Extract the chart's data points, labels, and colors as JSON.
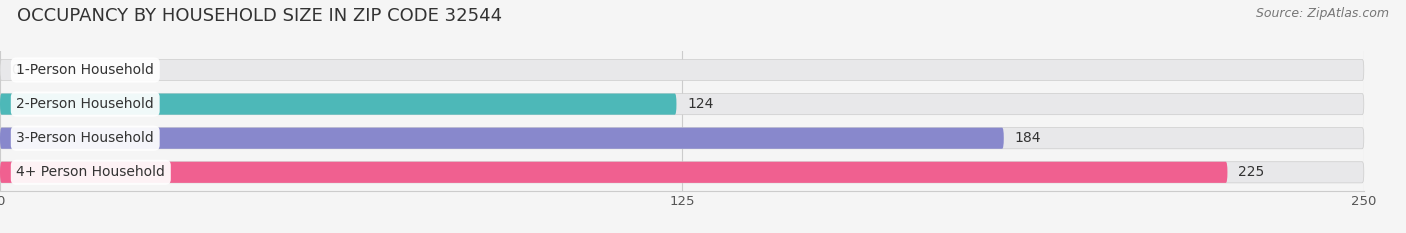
{
  "title": "OCCUPANCY BY HOUSEHOLD SIZE IN ZIP CODE 32544",
  "source": "Source: ZipAtlas.com",
  "categories": [
    "1-Person Household",
    "2-Person Household",
    "3-Person Household",
    "4+ Person Household"
  ],
  "values": [
    0,
    124,
    184,
    225
  ],
  "bar_colors": [
    "#c9a8d4",
    "#4db8b8",
    "#8888cc",
    "#f06090"
  ],
  "xlim": [
    0,
    250
  ],
  "xticks": [
    0,
    125,
    250
  ],
  "background_color": "#f5f5f5",
  "bar_bg_color": "#e8e8ea",
  "title_fontsize": 13,
  "source_fontsize": 9,
  "bar_height": 0.62,
  "value_fontsize": 10,
  "label_fontsize": 10,
  "label_color": "#333333"
}
